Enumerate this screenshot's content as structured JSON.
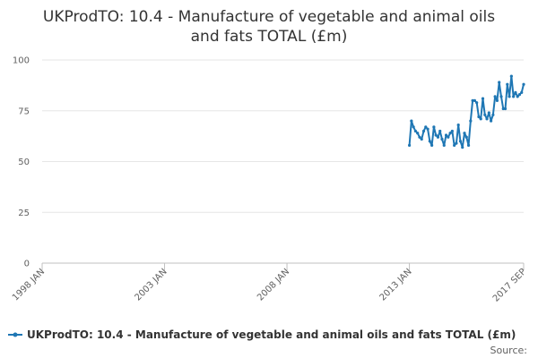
{
  "chart_data": {
    "type": "line",
    "title_lines": [
      "UKProdTO: 10.4 - Manufacture of vegetable and animal oils",
      "and fats TOTAL (£m)"
    ],
    "xlabel": "",
    "ylabel": "",
    "xlim": [
      "1998-01",
      "2017-09"
    ],
    "ylim": [
      0,
      100
    ],
    "y_ticks": [
      0,
      25,
      50,
      75,
      100
    ],
    "x_ticks": [
      {
        "date": "1998-01",
        "label": "1998 JAN"
      },
      {
        "date": "2003-01",
        "label": "2003 JAN"
      },
      {
        "date": "2008-01",
        "label": "2008 JAN"
      },
      {
        "date": "2013-01",
        "label": "2013 JAN"
      },
      {
        "date": "2017-09",
        "label": "2017 SEP"
      }
    ],
    "grid": "horizontal",
    "legend_position": "bottom",
    "series": [
      {
        "name": "UKProdTO: 10.4 - Manufacture of vegetable and animal oils and fats TOTAL (£m)",
        "color": "#1f77b4",
        "x": [
          "2013-01",
          "2013-02",
          "2013-03",
          "2013-04",
          "2013-05",
          "2013-06",
          "2013-07",
          "2013-08",
          "2013-09",
          "2013-10",
          "2013-11",
          "2013-12",
          "2014-01",
          "2014-02",
          "2014-03",
          "2014-04",
          "2014-05",
          "2014-06",
          "2014-07",
          "2014-08",
          "2014-09",
          "2014-10",
          "2014-11",
          "2014-12",
          "2015-01",
          "2015-02",
          "2015-03",
          "2015-04",
          "2015-05",
          "2015-06",
          "2015-07",
          "2015-08",
          "2015-09",
          "2015-10",
          "2015-11",
          "2015-12",
          "2016-01",
          "2016-02",
          "2016-03",
          "2016-04",
          "2016-05",
          "2016-06",
          "2016-07",
          "2016-08",
          "2016-09",
          "2016-10",
          "2016-11",
          "2016-12",
          "2017-01",
          "2017-02",
          "2017-03",
          "2017-04",
          "2017-05",
          "2017-06",
          "2017-07",
          "2017-08",
          "2017-09"
        ],
        "values": [
          58,
          70,
          67,
          65,
          64,
          62,
          61,
          65,
          67,
          66,
          60,
          58,
          67,
          63,
          62,
          65,
          61,
          58,
          63,
          62,
          64,
          65,
          58,
          59,
          68,
          60,
          57,
          64,
          62,
          58,
          70,
          80,
          80,
          79,
          72,
          71,
          81,
          73,
          71,
          74,
          70,
          73,
          82,
          80,
          89,
          82,
          76,
          76,
          88,
          82,
          92,
          82,
          84,
          82,
          83,
          84,
          88
        ]
      }
    ],
    "legend_label": "UKProdTO: 10.4 - Manufacture of vegetable and animal oils and fats TOTAL (£m)",
    "source": "Source:"
  }
}
